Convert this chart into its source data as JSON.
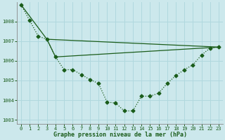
{
  "xlabel": "Graphe pression niveau de la mer (hPa)",
  "background_color": "#cce8ec",
  "grid_color": "#b0d8de",
  "line_color": "#1a5c1a",
  "xlim": [
    -0.5,
    23.5
  ],
  "ylim": [
    1002.8,
    1009.0
  ],
  "yticks": [
    1003,
    1004,
    1005,
    1006,
    1007,
    1008
  ],
  "xticks": [
    0,
    1,
    2,
    3,
    4,
    5,
    6,
    7,
    8,
    9,
    10,
    11,
    12,
    13,
    14,
    15,
    16,
    17,
    18,
    19,
    20,
    21,
    22,
    23
  ],
  "series_main": {
    "x": [
      0,
      1,
      2,
      3,
      4,
      5,
      6,
      7,
      8,
      9,
      10,
      11,
      12,
      13,
      14,
      15,
      16,
      17,
      18,
      19,
      20,
      21,
      22,
      23
    ],
    "y": [
      1008.85,
      1008.05,
      1007.25,
      1007.1,
      1006.2,
      1005.55,
      1005.55,
      1005.3,
      1005.05,
      1004.85,
      1003.9,
      1003.85,
      1003.45,
      1003.45,
      1004.2,
      1004.2,
      1004.35,
      1004.85,
      1005.25,
      1005.55,
      1005.8,
      1006.3,
      1006.65,
      1006.7
    ]
  },
  "series_line1": {
    "x": [
      0,
      3,
      23
    ],
    "y": [
      1008.85,
      1007.1,
      1006.7
    ]
  },
  "series_line2": {
    "x": [
      3,
      4,
      23
    ],
    "y": [
      1007.1,
      1006.2,
      1006.7
    ]
  }
}
